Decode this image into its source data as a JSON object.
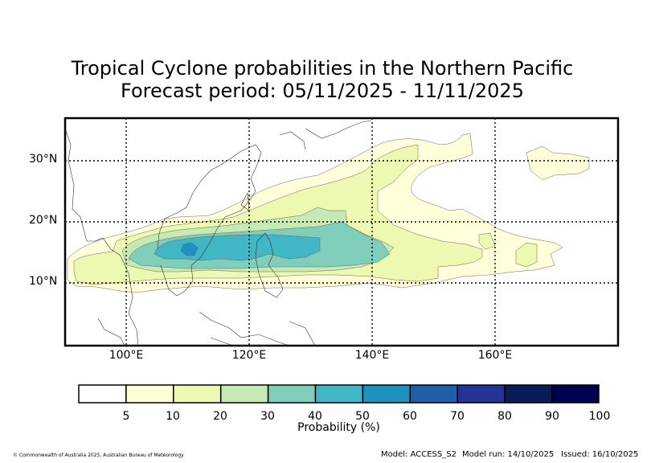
{
  "title": {
    "line1": "Tropical Cyclone probabilities in the Northern Pacific",
    "line2": "Forecast period: 05/11/2025 - 11/11/2025"
  },
  "map": {
    "lat_labels": [
      "30°N",
      "20°N",
      "10°N"
    ],
    "lon_labels": [
      "100°E",
      "120°E",
      "140°E",
      "160°E"
    ],
    "extent_lon": [
      90,
      180
    ],
    "extent_lat": [
      0,
      37
    ]
  },
  "colorbar": {
    "label": "Probability (%)",
    "ticks": [
      "5",
      "10",
      "20",
      "30",
      "40",
      "50",
      "60",
      "70",
      "80",
      "90",
      "100"
    ],
    "colors": [
      "#ffffff",
      "#ffffd9",
      "#edf8b1",
      "#c7e9b4",
      "#7fcdbb",
      "#41b6c4",
      "#1d91c0",
      "#225ea8",
      "#253494",
      "#081d58",
      "#000050"
    ]
  },
  "footer": {
    "copyright": "© Commonwealth of Australia 2025, Australian Bureau of Meteorology",
    "model": "Model: ACCESS_S2",
    "model_run": "Model run: 14/10/2025",
    "issued": "Issued: 16/10/2025"
  }
}
